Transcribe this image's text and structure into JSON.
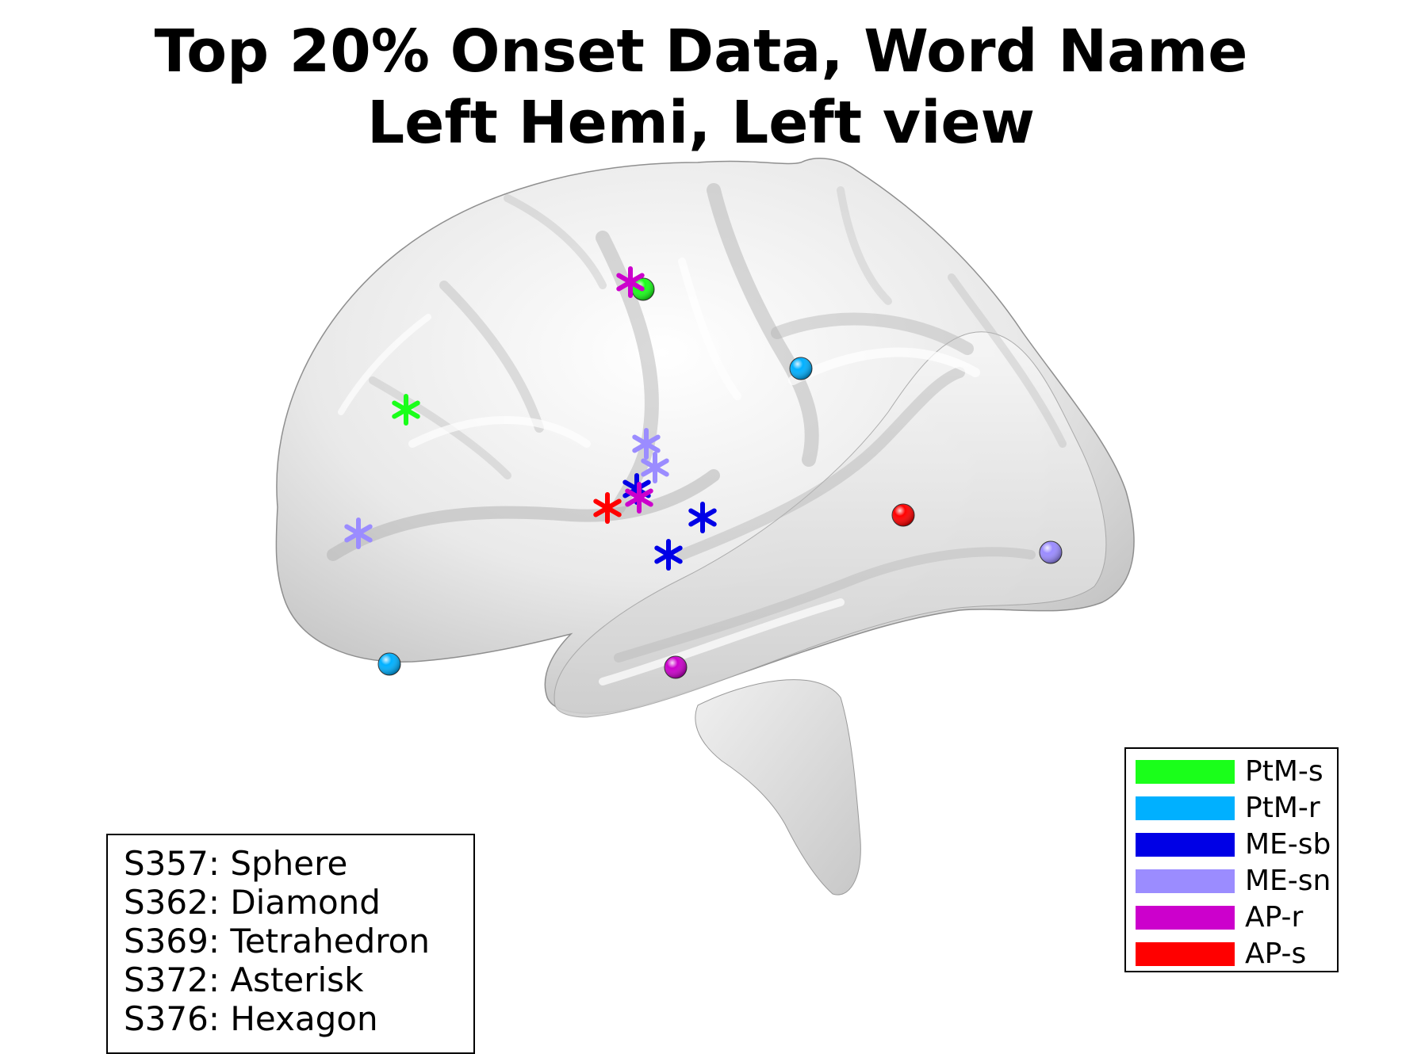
{
  "title": {
    "line1": "Top 20% Onset Data, Word Name",
    "line2": "Left Hemi, Left view"
  },
  "legend": [
    {
      "label": "PtM-s",
      "color": "#1aff1a"
    },
    {
      "label": "PtM-r",
      "color": "#00b0ff"
    },
    {
      "label": "ME-sb",
      "color": "#0000e6"
    },
    {
      "label": "ME-sn",
      "color": "#9b8cff"
    },
    {
      "label": "AP-r",
      "color": "#cc00cc"
    },
    {
      "label": "AP-s",
      "color": "#ff0000"
    }
  ],
  "shape_key": [
    "S357: Sphere",
    "S362: Diamond",
    "S369: Tetrahedron",
    "S372: Asterisk",
    "S376: Hexagon"
  ],
  "markers": [
    {
      "shape": "sphere",
      "group": "PtM-s"
    },
    {
      "shape": "asterisk",
      "group": "AP-r"
    },
    {
      "shape": "asterisk",
      "group": "PtM-s"
    },
    {
      "shape": "sphere",
      "group": "PtM-r"
    },
    {
      "shape": "asterisk",
      "group": "ME-sn"
    },
    {
      "shape": "asterisk",
      "group": "ME-sn"
    },
    {
      "shape": "asterisk",
      "group": "ME-sb"
    },
    {
      "shape": "asterisk",
      "group": "AP-r"
    },
    {
      "shape": "asterisk",
      "group": "AP-s"
    },
    {
      "shape": "asterisk",
      "group": "ME-sb"
    },
    {
      "shape": "asterisk",
      "group": "ME-sb"
    },
    {
      "shape": "asterisk",
      "group": "ME-sn"
    },
    {
      "shape": "sphere",
      "group": "AP-s"
    },
    {
      "shape": "sphere",
      "group": "ME-sn"
    },
    {
      "shape": "sphere",
      "group": "PtM-r"
    },
    {
      "shape": "sphere",
      "group": "AP-r"
    }
  ]
}
